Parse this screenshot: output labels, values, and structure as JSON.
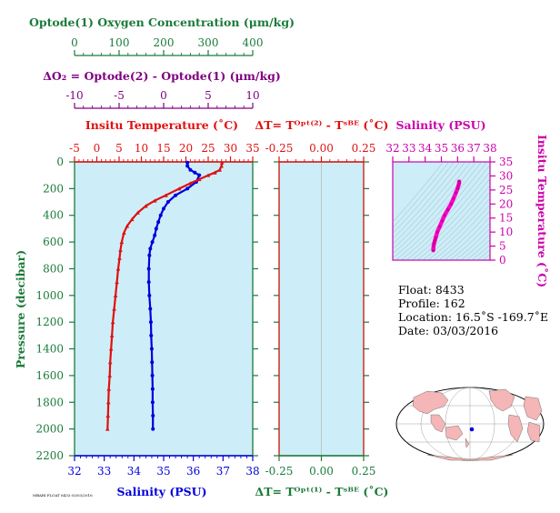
{
  "colors": {
    "oxygen": "#1a7a3a",
    "delta_o2": "#800080",
    "temperature": "#e01010",
    "salinity": "#0000dd",
    "pressure_axis": "#1a7a3a",
    "ts_curve": "#ff00cc",
    "panel_bg": "#cdeef8",
    "land": "#f4b6b6"
  },
  "labels": {
    "oxygen_title": "Optode(1) Oxygen Concentration (μm/kg)",
    "delta_o2_title": "ΔO₂ = Optode(2) - Optode(1)   (μm/kg)",
    "temperature_title": "Insitu Temperature (˚C)",
    "salinity_title": "Salinity (PSU)",
    "pressure_title": "Pressure (decibar)",
    "dt_top_title": "ΔT= Tᴼᵖᵗ⁽²⁾ - Tˢᴮᴱ (˚C)",
    "dt_bottom_title": "ΔT= Tᴼᵖᵗ⁽¹⁾ - Tˢᴮᴱ (˚C)",
    "ts_top_title": "Salinity (PSU)",
    "ts_right_title": "Insitu Temperature (˚C)",
    "footnote": "MBARI FLOAT 8433 03/03/2016"
  },
  "info": {
    "float": "Float:  8433",
    "profile": "Profile:  162",
    "location": "Location:  16.5˚S  -169.7˚E",
    "date": "Date:  03/03/2016"
  },
  "chart_data": [
    {
      "type": "line",
      "name": "profile",
      "ylim": [
        2200,
        0
      ],
      "yticks": [
        "0",
        "200",
        "400",
        "600",
        "800",
        "1000",
        "1200",
        "1400",
        "1600",
        "1800",
        "2000",
        "2200"
      ],
      "ylabel": "Pressure (decibar)",
      "oxygen_axis": {
        "ticks": [
          "0",
          "100",
          "200",
          "300",
          "400"
        ],
        "xlim": [
          0,
          400
        ]
      },
      "delta_o2_axis": {
        "ticks": [
          "-10",
          "-5",
          "0",
          "5",
          "10"
        ],
        "xlim": [
          -10,
          10
        ]
      },
      "temperature_axis": {
        "ticks": [
          "-5",
          "0",
          "5",
          "10",
          "15",
          "20",
          "25",
          "30",
          "35"
        ],
        "xlim": [
          -5,
          35
        ]
      },
      "salinity_axis": {
        "ticks": [
          "32",
          "33",
          "34",
          "35",
          "36",
          "37",
          "38"
        ],
        "xlim": [
          32,
          38
        ]
      },
      "series": [
        {
          "name": "Insitu Temperature",
          "pressure": [
            5,
            30,
            60,
            80,
            100,
            130,
            160,
            200,
            250,
            290,
            330,
            380,
            430,
            480,
            530,
            600,
            660,
            720,
            800,
            900,
            1000,
            1100,
            1200,
            1300,
            1400,
            1500,
            1600,
            1700,
            1800,
            1900,
            2000
          ],
          "values": [
            28.1,
            28.0,
            27.6,
            26.5,
            25.0,
            23.0,
            21.0,
            18.5,
            15.5,
            13.0,
            11.0,
            9.2,
            7.9,
            6.8,
            6.1,
            5.6,
            5.3,
            5.1,
            4.8,
            4.5,
            4.2,
            3.9,
            3.6,
            3.4,
            3.2,
            3.0,
            2.9,
            2.7,
            2.6,
            2.5,
            2.4
          ]
        },
        {
          "name": "Salinity",
          "pressure": [
            5,
            30,
            60,
            80,
            100,
            150,
            200,
            250,
            300,
            350,
            400,
            450,
            500,
            550,
            600,
            650,
            700,
            800,
            900,
            1000,
            1100,
            1200,
            1300,
            1400,
            1500,
            1600,
            1700,
            1800,
            1900,
            2000
          ],
          "values": [
            35.8,
            35.8,
            35.9,
            36.05,
            36.2,
            36.1,
            35.8,
            35.4,
            35.15,
            35.0,
            34.9,
            34.82,
            34.75,
            34.7,
            34.62,
            34.55,
            34.52,
            34.5,
            34.5,
            34.52,
            34.55,
            34.57,
            34.58,
            34.6,
            34.61,
            34.62,
            34.63,
            34.63,
            34.64,
            34.64
          ]
        }
      ]
    },
    {
      "type": "line",
      "name": "delta-t",
      "xlim": [
        -0.25,
        0.25
      ],
      "xticks": [
        "-0.25",
        "0.00",
        "0.25"
      ],
      "series": []
    },
    {
      "type": "line",
      "name": "t-s diagram",
      "xlim": [
        32,
        38
      ],
      "ylim": [
        0,
        35
      ],
      "xticks": [
        "32",
        "33",
        "34",
        "35",
        "36",
        "37",
        "38"
      ],
      "yticks": [
        "0",
        "5",
        "10",
        "15",
        "20",
        "25",
        "30",
        "35"
      ],
      "series": [
        {
          "name": "T-S",
          "salinity": [
            34.5,
            34.52,
            34.55,
            34.6,
            34.65,
            34.75,
            34.9,
            35.05,
            35.2,
            35.4,
            35.6,
            35.75,
            35.9,
            36.0,
            36.05,
            36.1,
            36.1
          ],
          "temperature": [
            3.5,
            5,
            6,
            7,
            8,
            10,
            12,
            14,
            16,
            18,
            20,
            22,
            24,
            25.5,
            26.5,
            27.5,
            28
          ]
        }
      ]
    }
  ]
}
